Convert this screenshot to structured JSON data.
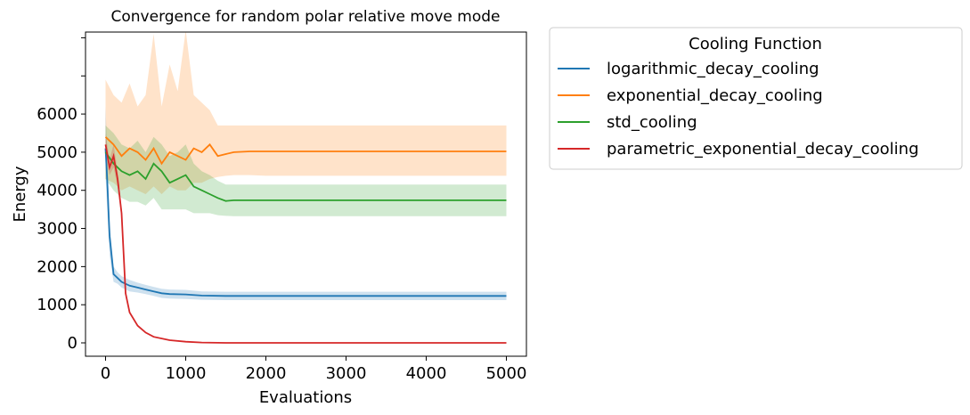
{
  "chart_data": {
    "type": "line",
    "title": "Convergence for random polar relative move mode",
    "xlabel": "Evaluations",
    "ylabel": "Energy",
    "xlim": [
      -250,
      5250
    ],
    "ylim": [
      -350,
      8150
    ],
    "x_ticks": [
      0,
      1000,
      2000,
      3000,
      4000,
      5000
    ],
    "x_tick_labels": [
      "0",
      "1000",
      "2000",
      "3000",
      "4000",
      "5000"
    ],
    "y_ticks": [
      0,
      1000,
      2000,
      3000,
      4000,
      5000,
      6000,
      7000,
      8000
    ],
    "y_tick_labels": [
      "0",
      "1000",
      "2000",
      "3000",
      "4000",
      "5000",
      "6000",
      "",
      ""
    ],
    "grid": false,
    "legend": {
      "title": "Cooling Function",
      "placement": "outside-upper-right"
    },
    "series": [
      {
        "name": "logarithmic_decay_cooling",
        "color": "#1f77b4",
        "x": [
          0,
          20,
          50,
          100,
          150,
          200,
          300,
          400,
          500,
          600,
          700,
          800,
          1000,
          1200,
          1500,
          2000,
          3000,
          4000,
          5000
        ],
        "y": [
          5100,
          4300,
          2800,
          1800,
          1700,
          1600,
          1500,
          1450,
          1400,
          1350,
          1300,
          1280,
          1270,
          1240,
          1230,
          1230,
          1230,
          1230,
          1230
        ],
        "lower": [
          4400,
          3500,
          2300,
          1600,
          1550,
          1450,
          1350,
          1320,
          1280,
          1230,
          1180,
          1160,
          1150,
          1130,
          1120,
          1120,
          1120,
          1120,
          1120
        ],
        "upper": [
          6200,
          5000,
          3200,
          2000,
          1850,
          1750,
          1650,
          1580,
          1520,
          1470,
          1420,
          1400,
          1390,
          1350,
          1340,
          1340,
          1340,
          1340,
          1340
        ]
      },
      {
        "name": "exponential_decay_cooling",
        "color": "#ff7f0e",
        "x": [
          0,
          100,
          200,
          300,
          400,
          500,
          600,
          700,
          800,
          900,
          1000,
          1100,
          1200,
          1300,
          1400,
          1500,
          1600,
          1800,
          2000,
          3000,
          4000,
          5000
        ],
        "y": [
          5400,
          5200,
          4900,
          5100,
          5000,
          4800,
          5100,
          4700,
          5000,
          4900,
          4800,
          5100,
          5000,
          5200,
          4900,
          4950,
          5000,
          5020,
          5020,
          5020,
          5020,
          5020
        ],
        "lower": [
          4300,
          4200,
          4000,
          4100,
          4000,
          3900,
          4100,
          3900,
          4100,
          4000,
          4000,
          4200,
          4200,
          4300,
          4350,
          4380,
          4400,
          4400,
          4380,
          4380,
          4380,
          4380
        ],
        "upper": [
          6900,
          6500,
          6300,
          6800,
          6200,
          6500,
          8100,
          6200,
          7300,
          6600,
          8200,
          6500,
          6300,
          6100,
          5700,
          5700,
          5700,
          5700,
          5700,
          5700,
          5700,
          5700
        ]
      },
      {
        "name": "std_cooling",
        "color": "#2ca02c",
        "x": [
          0,
          100,
          200,
          300,
          400,
          500,
          600,
          700,
          800,
          900,
          1000,
          1100,
          1200,
          1300,
          1400,
          1500,
          1600,
          2000,
          3000,
          4000,
          5000
        ],
        "y": [
          5000,
          4700,
          4500,
          4400,
          4500,
          4300,
          4700,
          4500,
          4200,
          4300,
          4400,
          4100,
          4000,
          3900,
          3800,
          3720,
          3740,
          3740,
          3740,
          3740,
          3740
        ],
        "lower": [
          4300,
          4000,
          3800,
          3700,
          3700,
          3600,
          3800,
          3500,
          3500,
          3500,
          3500,
          3400,
          3400,
          3400,
          3350,
          3330,
          3320,
          3320,
          3320,
          3320,
          3320
        ],
        "upper": [
          5700,
          5500,
          5200,
          5100,
          5300,
          5000,
          5400,
          5200,
          4900,
          5000,
          5200,
          4700,
          4500,
          4400,
          4250,
          4150,
          4150,
          4150,
          4150,
          4150,
          4150
        ]
      },
      {
        "name": "parametric_exponential_decay_cooling",
        "color": "#d62728",
        "x": [
          0,
          50,
          100,
          150,
          200,
          250,
          300,
          400,
          500,
          600,
          800,
          1000,
          1200,
          1500,
          2000,
          3000,
          4000,
          5000
        ],
        "y": [
          5200,
          4600,
          4900,
          4300,
          3400,
          1300,
          800,
          450,
          270,
          160,
          70,
          30,
          10,
          0,
          0,
          0,
          0,
          0
        ],
        "lower": [
          4900,
          4400,
          4600,
          4100,
          3250,
          1200,
          760,
          420,
          250,
          145,
          60,
          25,
          8,
          0,
          0,
          0,
          0,
          0
        ],
        "upper": [
          5500,
          4800,
          5200,
          4500,
          3550,
          1400,
          840,
          480,
          290,
          175,
          80,
          35,
          12,
          0,
          0,
          0,
          0,
          0
        ]
      }
    ]
  }
}
